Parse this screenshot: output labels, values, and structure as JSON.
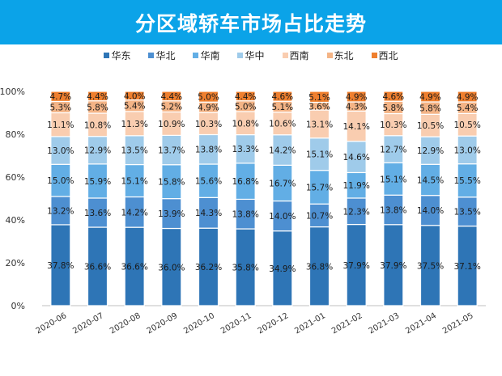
{
  "header": {
    "title": "分区域轿车市场占比走势"
  },
  "chart_data": {
    "type": "bar",
    "stacked": true,
    "title": "分区域轿车市场占比走势",
    "categories": [
      "2020-06",
      "2020-07",
      "2020-08",
      "2020-09",
      "2020-10",
      "2020-11",
      "2020-12",
      "2021-01",
      "2021-02",
      "2021-03",
      "2021-04",
      "2021-05"
    ],
    "series": [
      {
        "name": "华东",
        "color": "#2e75b6",
        "values": [
          37.8,
          36.6,
          36.6,
          36.0,
          36.2,
          35.8,
          34.9,
          36.8,
          37.9,
          37.9,
          37.5,
          37.1
        ]
      },
      {
        "name": "华北",
        "color": "#4d8fd1",
        "values": [
          13.2,
          13.6,
          14.2,
          13.9,
          14.3,
          13.8,
          14.0,
          10.7,
          12.3,
          13.8,
          14.0,
          13.5
        ]
      },
      {
        "name": "华南",
        "color": "#62aee5",
        "values": [
          15.0,
          15.9,
          15.1,
          15.8,
          15.6,
          16.8,
          16.7,
          15.7,
          11.9,
          15.1,
          14.5,
          15.5
        ]
      },
      {
        "name": "华中",
        "color": "#9fcbea",
        "values": [
          13.0,
          12.9,
          13.5,
          13.7,
          13.8,
          13.3,
          14.2,
          15.1,
          14.6,
          12.7,
          12.9,
          13.0
        ]
      },
      {
        "name": "西南",
        "color": "#f9cdb0",
        "values": [
          11.1,
          10.8,
          11.3,
          10.9,
          10.3,
          10.8,
          10.6,
          13.1,
          14.1,
          10.3,
          10.5,
          10.5
        ]
      },
      {
        "name": "东北",
        "color": "#f4b486",
        "values": [
          5.3,
          5.8,
          5.4,
          5.2,
          4.9,
          5.0,
          5.1,
          3.6,
          4.3,
          5.8,
          5.8,
          5.4
        ]
      },
      {
        "name": "西北",
        "color": "#ef7f2e",
        "values": [
          4.7,
          4.4,
          4.0,
          4.4,
          5.0,
          4.4,
          4.6,
          5.1,
          4.9,
          4.6,
          4.9,
          4.9
        ]
      }
    ],
    "yticks": [
      "0%",
      "20%",
      "40%",
      "60%",
      "80%",
      "100%"
    ],
    "ylim": [
      0,
      100
    ],
    "grid": false,
    "legend": "top",
    "data_labels": true
  }
}
